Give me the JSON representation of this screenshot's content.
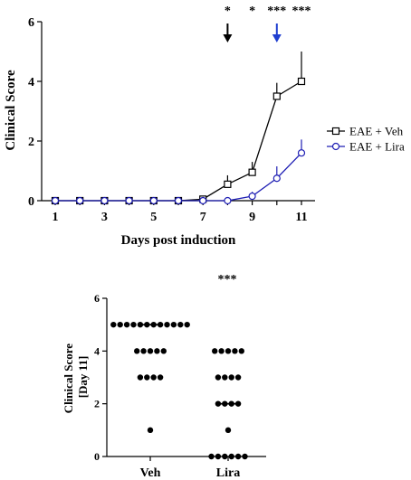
{
  "chart_data": [
    {
      "type": "line",
      "xlabel": "Days post induction",
      "ylabel": "Clinical Score",
      "xlim": [
        0.5,
        11.5
      ],
      "ylim": [
        0,
        6
      ],
      "x_ticks": [
        "1",
        "3",
        "5",
        "7",
        "9",
        "11"
      ],
      "y_ticks": [
        "0",
        "2",
        "4",
        "6"
      ],
      "legend_position": "right",
      "series": [
        {
          "name": "EAE + Veh",
          "marker": "square",
          "color": "#000000",
          "x": [
            1,
            2,
            3,
            4,
            5,
            6,
            7,
            8,
            9,
            10,
            11
          ],
          "y": [
            0,
            0,
            0,
            0,
            0,
            0,
            0.05,
            0.55,
            0.95,
            3.5,
            4.0
          ],
          "error": [
            0,
            0,
            0,
            0,
            0,
            0,
            0.05,
            0.3,
            0.35,
            0.45,
            1.0
          ]
        },
        {
          "name": "EAE + Lira",
          "marker": "circle",
          "color": "#1f1fb4",
          "x": [
            1,
            2,
            3,
            4,
            5,
            6,
            7,
            8,
            9,
            10,
            11
          ],
          "y": [
            0,
            0,
            0,
            0,
            0,
            0,
            0,
            0,
            0.15,
            0.75,
            1.6
          ],
          "error": [
            0,
            0,
            0,
            0,
            0,
            0,
            0,
            0,
            0.15,
            0.4,
            0.45
          ]
        }
      ],
      "significance": [
        {
          "x": 8,
          "label": "*"
        },
        {
          "x": 9,
          "label": "*"
        },
        {
          "x": 10,
          "label": "***"
        },
        {
          "x": 11,
          "label": "***"
        }
      ],
      "arrows": [
        {
          "x": 8,
          "color": "#000000"
        },
        {
          "x": 10,
          "color": "#1f3fd0"
        }
      ]
    },
    {
      "type": "scatter",
      "ylabel": "Clinical Score [Day 11]",
      "ylabel_lines": [
        "Clinical Score",
        "[Day 11]"
      ],
      "categories": [
        "Veh",
        "Lira"
      ],
      "y_ticks": [
        "0",
        "2",
        "4",
        "6"
      ],
      "ylim": [
        0,
        6
      ],
      "significance_label": "***",
      "groups": [
        {
          "name": "Veh",
          "rows": [
            {
              "y": 5,
              "n": 12
            },
            {
              "y": 4,
              "n": 5
            },
            {
              "y": 3,
              "n": 4
            },
            {
              "y": 1,
              "n": 1
            }
          ],
          "median": 5
        },
        {
          "name": "Lira",
          "rows": [
            {
              "y": 4,
              "n": 5
            },
            {
              "y": 3,
              "n": 4
            },
            {
              "y": 2,
              "n": 4
            },
            {
              "y": 1,
              "n": 1
            },
            {
              "y": 0,
              "n": 6
            }
          ],
          "median": 2
        }
      ]
    }
  ]
}
